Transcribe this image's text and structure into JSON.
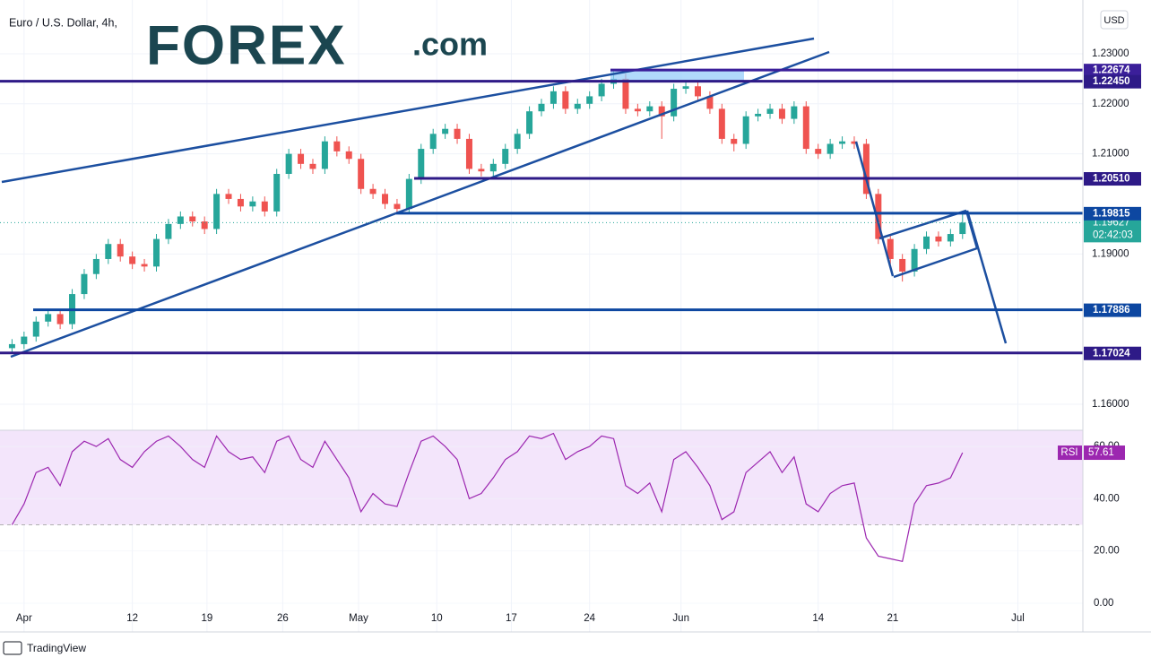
{
  "logo": "FOREX",
  "logo_suffix": ".com",
  "watermark": "TradingView",
  "chart_data": [
    {
      "type": "candlestick",
      "title": "Euro / U.S. Dollar, 4h,",
      "currency": "USD",
      "up_color": "#26a69a",
      "down_color": "#ef5350",
      "open": [
        1.1712,
        1.172,
        1.1735,
        1.1765,
        1.178,
        1.176,
        1.182,
        1.186,
        1.189,
        1.192,
        1.1895,
        1.188,
        1.1875,
        1.193,
        1.196,
        1.1975,
        1.1965,
        1.195,
        1.202,
        1.201,
        1.1995,
        1.2005,
        1.1985,
        1.206,
        1.21,
        1.208,
        1.207,
        1.2125,
        1.2105,
        1.209,
        1.203,
        1.202,
        1.2,
        1.199,
        1.205,
        1.211,
        1.214,
        1.215,
        1.213,
        1.207,
        1.2065,
        1.208,
        1.211,
        1.214,
        1.2185,
        1.22,
        1.2225,
        1.219,
        1.22,
        1.2215,
        1.224,
        1.225,
        1.219,
        1.2185,
        1.2195,
        1.2175,
        1.223,
        1.2235,
        1.2215,
        1.219,
        1.213,
        1.212,
        1.2175,
        1.218,
        1.219,
        1.217,
        1.2195,
        1.211,
        1.21,
        1.212,
        1.2125,
        1.212,
        1.202,
        1.193,
        1.189,
        1.1865,
        1.191,
        1.1935,
        1.1925,
        1.194
      ],
      "high": [
        1.173,
        1.1745,
        1.1775,
        1.179,
        1.179,
        1.183,
        1.187,
        1.19,
        1.193,
        1.193,
        1.1905,
        1.189,
        1.194,
        1.197,
        1.1985,
        1.1985,
        1.1975,
        1.203,
        1.203,
        1.202,
        1.2015,
        1.2015,
        1.207,
        1.211,
        1.211,
        1.209,
        1.2135,
        1.2135,
        1.2115,
        1.21,
        1.204,
        1.203,
        1.201,
        1.206,
        1.212,
        1.215,
        1.216,
        1.216,
        1.214,
        1.208,
        1.209,
        1.212,
        1.215,
        1.2195,
        1.221,
        1.2235,
        1.2235,
        1.221,
        1.2225,
        1.225,
        1.2266,
        1.226,
        1.22,
        1.2205,
        1.2205,
        1.224,
        1.2245,
        1.2245,
        1.2225,
        1.22,
        1.214,
        1.2185,
        1.219,
        1.22,
        1.22,
        1.2205,
        1.2205,
        1.212,
        1.213,
        1.2135,
        1.2135,
        1.213,
        1.203,
        1.194,
        1.19,
        1.192,
        1.1945,
        1.1945,
        1.195,
        1.198
      ],
      "low": [
        1.1702,
        1.171,
        1.1725,
        1.1755,
        1.175,
        1.175,
        1.181,
        1.185,
        1.188,
        1.1885,
        1.187,
        1.1865,
        1.1865,
        1.192,
        1.195,
        1.1955,
        1.194,
        1.194,
        1.2,
        1.1985,
        1.1985,
        1.1975,
        1.1975,
        1.205,
        1.207,
        1.206,
        1.206,
        1.2095,
        1.208,
        1.202,
        1.201,
        1.199,
        1.198,
        1.198,
        1.204,
        1.21,
        1.213,
        1.212,
        1.206,
        1.2055,
        1.2055,
        1.207,
        1.21,
        1.213,
        1.2175,
        1.219,
        1.218,
        1.218,
        1.219,
        1.2205,
        1.223,
        1.218,
        1.2175,
        1.2175,
        1.213,
        1.2165,
        1.222,
        1.2205,
        1.218,
        1.212,
        1.2105,
        1.211,
        1.2165,
        1.217,
        1.216,
        1.216,
        1.21,
        1.209,
        1.209,
        1.211,
        1.211,
        1.201,
        1.192,
        1.188,
        1.1845,
        1.1855,
        1.19,
        1.1915,
        1.1915,
        1.193
      ],
      "close": [
        1.172,
        1.1735,
        1.1765,
        1.178,
        1.176,
        1.182,
        1.186,
        1.189,
        1.192,
        1.1895,
        1.188,
        1.1875,
        1.193,
        1.196,
        1.1975,
        1.1965,
        1.195,
        1.202,
        1.201,
        1.1995,
        1.2005,
        1.1985,
        1.206,
        1.21,
        1.208,
        1.207,
        1.2125,
        1.2105,
        1.209,
        1.203,
        1.202,
        1.2,
        1.199,
        1.205,
        1.211,
        1.214,
        1.215,
        1.213,
        1.207,
        1.2065,
        1.208,
        1.211,
        1.214,
        1.2185,
        1.22,
        1.2225,
        1.219,
        1.22,
        1.2215,
        1.224,
        1.225,
        1.219,
        1.2185,
        1.2195,
        1.2175,
        1.223,
        1.2235,
        1.2215,
        1.219,
        1.213,
        1.212,
        1.2175,
        1.218,
        1.219,
        1.217,
        1.2195,
        1.211,
        1.21,
        1.212,
        1.2125,
        1.212,
        1.202,
        1.193,
        1.189,
        1.1865,
        1.191,
        1.1935,
        1.1925,
        1.194,
        1.19627
      ],
      "xlim": [
        0,
        90
      ],
      "xticks": [
        {
          "value": 2,
          "label": "Apr"
        },
        {
          "value": 11,
          "label": "12"
        },
        {
          "value": 17.2,
          "label": "19"
        },
        {
          "value": 23.5,
          "label": "26"
        },
        {
          "value": 29.8,
          "label": "May"
        },
        {
          "value": 36.3,
          "label": "10"
        },
        {
          "value": 42.5,
          "label": "17"
        },
        {
          "value": 49,
          "label": "24"
        },
        {
          "value": 56.6,
          "label": "Jun"
        },
        {
          "value": 68,
          "label": "14"
        },
        {
          "value": 74.2,
          "label": "21"
        },
        {
          "value": 84.6,
          "label": "Jul"
        }
      ],
      "ylim": [
        1.1548,
        1.2393
      ],
      "yticks": [
        {
          "value": 1.16,
          "label": "1.16000"
        },
        {
          "value": 1.19,
          "label": "1.19000"
        },
        {
          "value": 1.21,
          "label": "1.21000"
        },
        {
          "value": 1.22,
          "label": "1.22000"
        },
        {
          "value": 1.23,
          "label": "1.23000"
        }
      ],
      "grid": true,
      "levels": [
        {
          "value": 1.22674,
          "label": "1.22674",
          "color": "#3b1f9a"
        },
        {
          "value": 1.2245,
          "label": "1.22450",
          "color": "#2e1a87"
        },
        {
          "value": 1.2051,
          "label": "1.20510",
          "color": "#2e1a87"
        },
        {
          "value": 1.19815,
          "label": "1.19815",
          "color": "#0d47a1"
        },
        {
          "value": 1.17886,
          "label": "1.17886",
          "color": "#0d47a1"
        },
        {
          "value": 1.17024,
          "label": "1.17024",
          "color": "#2e1a87"
        }
      ],
      "last_price": 1.19627,
      "countdown": "02:42:03"
    },
    {
      "type": "line",
      "name": "RSI",
      "color": "#9c27b0",
      "values": [
        30,
        38,
        50,
        52,
        45,
        58,
        62,
        60,
        63,
        55,
        52,
        58,
        62,
        64,
        60,
        55,
        52,
        64,
        58,
        55,
        56,
        50,
        62,
        64,
        55,
        52,
        62,
        55,
        48,
        35,
        42,
        38,
        37,
        50,
        62,
        64,
        60,
        55,
        40,
        42,
        48,
        55,
        58,
        64,
        63,
        65,
        55,
        58,
        60,
        64,
        63,
        45,
        42,
        46,
        35,
        55,
        58,
        52,
        45,
        32,
        35,
        50,
        54,
        58,
        50,
        56,
        38,
        35,
        42,
        45,
        46,
        25,
        18,
        17,
        16,
        38,
        45,
        46,
        48,
        57.61
      ],
      "ylim": [
        -11,
        66.2
      ],
      "yticks": [
        {
          "value": 0,
          "label": "0.00"
        },
        {
          "value": 20,
          "label": "20.00"
        },
        {
          "value": 40,
          "label": "40.00"
        },
        {
          "value": 60,
          "label": "60.00"
        }
      ],
      "band": [
        30,
        70
      ]
    }
  ]
}
